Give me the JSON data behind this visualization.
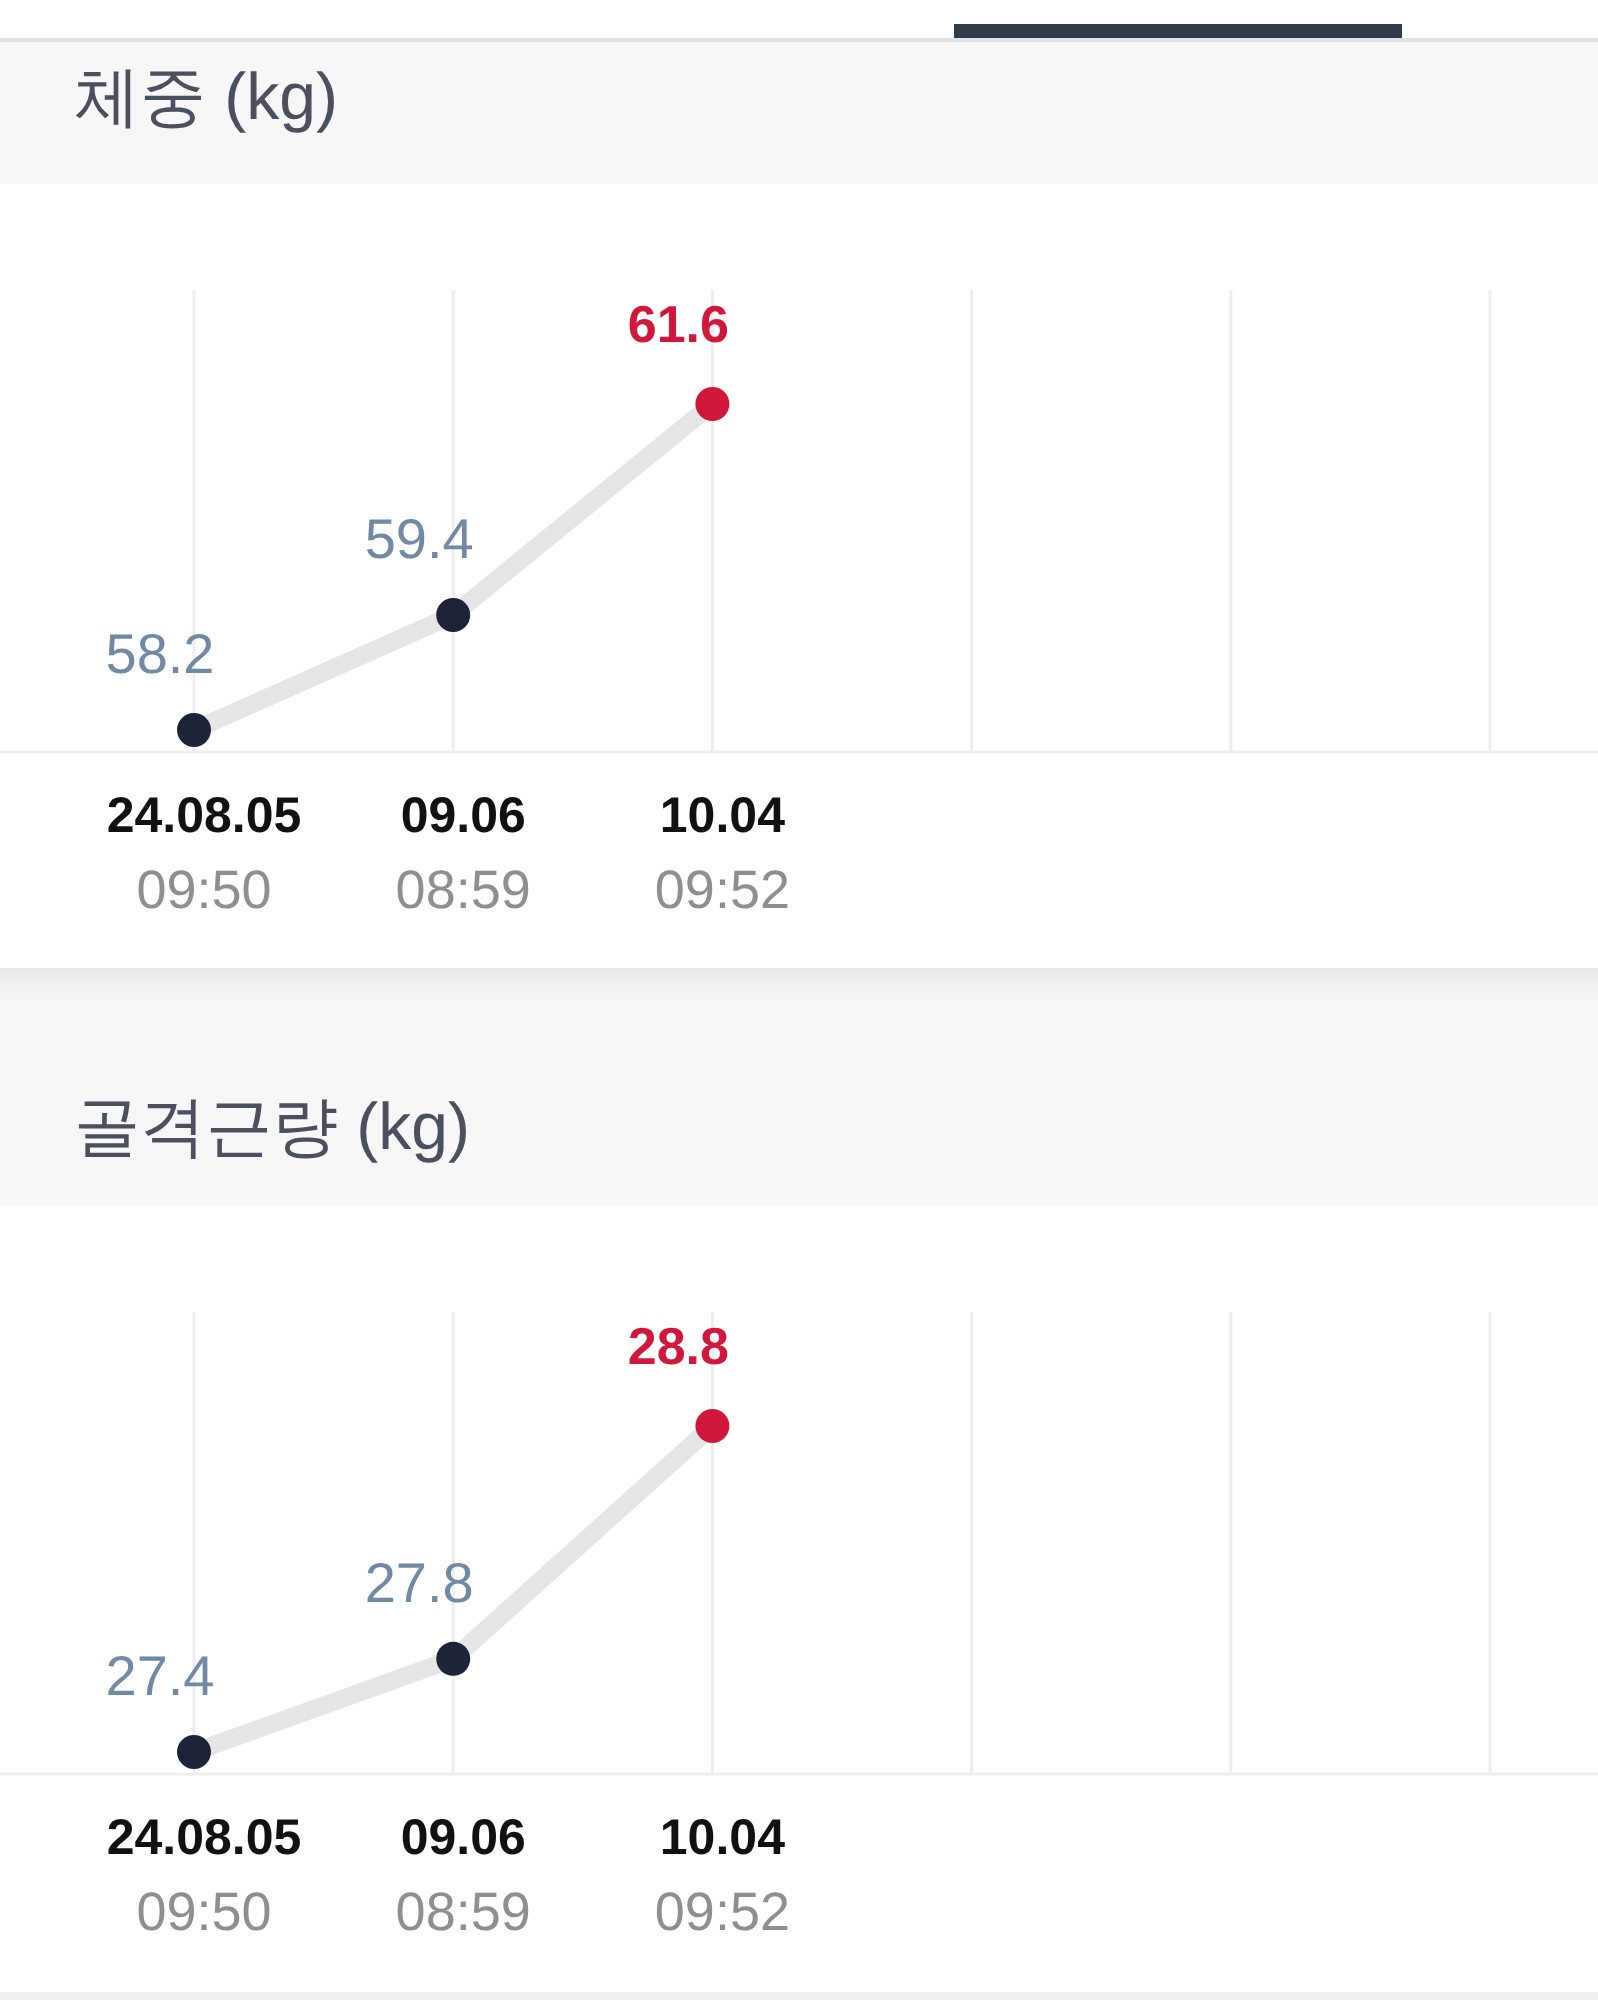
{
  "chart_data": [
    {
      "type": "line",
      "title": "체중 (kg)",
      "categories": [
        "24.08.05\n09:50",
        "09.06\n08:59",
        "10.04\n09:52",
        null,
        null,
        null
      ],
      "values": [
        58.2,
        59.4,
        61.6,
        null,
        null,
        null
      ],
      "color": "#e6e6e6",
      "colors": [
        "#1e2438",
        "#1e2438",
        "#d2173c",
        null,
        null,
        null
      ],
      "marker": "circle",
      "grid": "x",
      "tick_labels": "x",
      "data_labels": true
    },
    {
      "type": "line",
      "title": "골격근량 (kg)",
      "categories": [
        "24.08.05\n09:50",
        "09.06\n08:59",
        "10.04\n09:52",
        null,
        null,
        null
      ],
      "values": [
        27.4,
        27.8,
        28.8,
        null,
        null,
        null
      ],
      "color": "#e6e6e6",
      "colors": [
        "#1e2438",
        "#1e2438",
        "#d2173c",
        null,
        null,
        null
      ],
      "marker": "circle",
      "grid": "x",
      "tick_labels": "x",
      "data_labels": true
    }
  ]
}
